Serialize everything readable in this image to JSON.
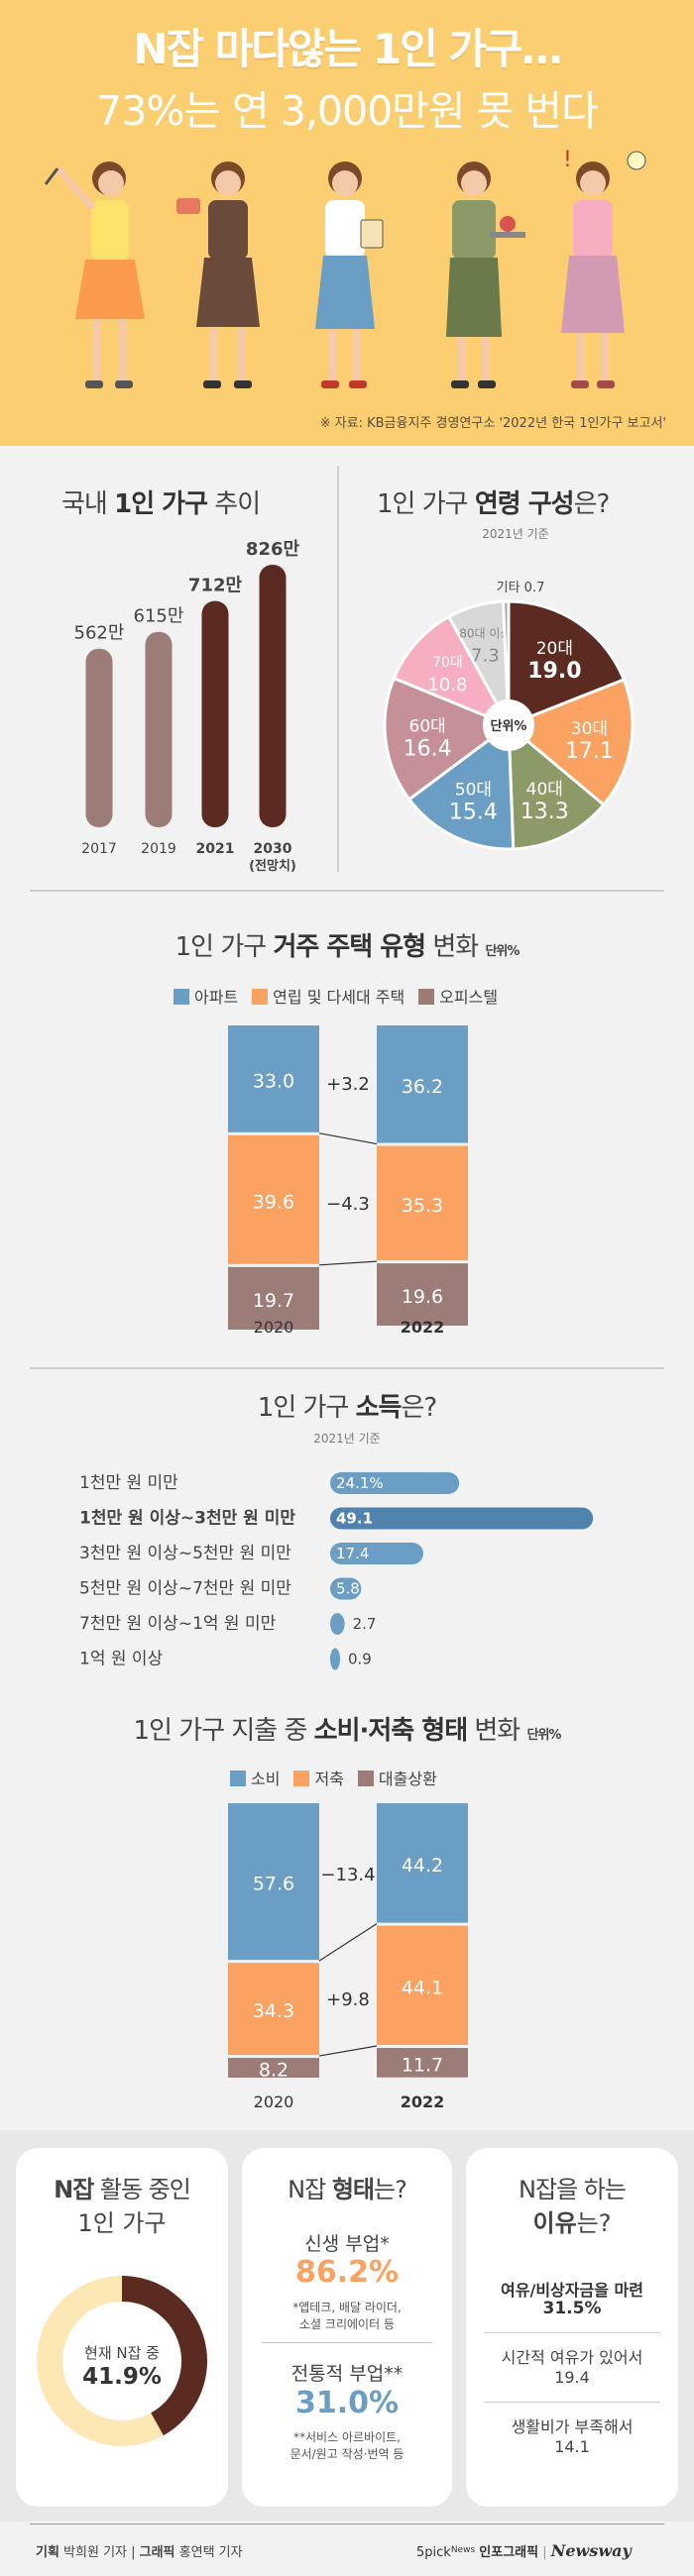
{
  "header": {
    "title": "N잡 마다않는 1인 가구…",
    "subtitle": "73%는 연 3,000만원 못 번다",
    "source": "※ 자료: KB금융지주 경영연구소 '2022년 한국 1인가구 보고서'"
  },
  "colors": {
    "brown": "#5b2b22",
    "mauve": "#9c7c76",
    "blue": "#6b9ec4",
    "orange": "#f9a261",
    "rose": "#c69099",
    "sage": "#8b9a66",
    "pink": "#f6aec0",
    "lightgray": "#d8d8d8",
    "gray": "#a9a9a9",
    "cream": "#fde7b4"
  },
  "households": {
    "title_pre": "국내 ",
    "title_bold": "1인 가구",
    "title_post": " 추이"
  },
  "age": {
    "title_pre": "1인 가구 ",
    "title_bold": "연령 구성",
    "title_post": "은?",
    "subtitle": "2021년 기준",
    "center_label": "단위%"
  },
  "housing": {
    "title_pre": "1인 가구 ",
    "title_bold": "거주 주택 유형",
    "title_post": " 변화",
    "unit": "단위%",
    "legend": [
      "아파트",
      "연립 및 다세대 주택",
      "오피스텔"
    ],
    "changes": [
      "+3.2",
      "−4.3"
    ]
  },
  "income": {
    "title_pre": "1인 가구 ",
    "title_bold": "소득",
    "title_post": "은?",
    "subtitle": "2021년 기준"
  },
  "spending": {
    "title_pre": "1인 가구 지출 중 ",
    "title_bold": "소비·저축 형태",
    "title_post": " 변화",
    "unit": "단위%",
    "legend": [
      "소비",
      "저축",
      "대출상환"
    ],
    "changes": [
      "−13.4",
      "+9.8"
    ]
  },
  "cards": {
    "c1": {
      "title_bold": "N잡",
      "title_post": " 활동 중인",
      "title_line2": "1인 가구",
      "center_line1": "현재 N잡 중",
      "center_value": "41.9%"
    },
    "c2": {
      "title_pre": "N잡 ",
      "title_bold": "형태",
      "title_post": "는?",
      "item1_label": "신생 부업*",
      "item1_value": "86.2%",
      "item1_note1": "*앱테크, 배달 라이더,",
      "item1_note2": "소셜 크리에이터 등",
      "item2_label": "전통적 부업**",
      "item2_value": "31.0%",
      "item2_note1": "**서비스 아르바이트,",
      "item2_note2": "문서/원고 작성·번역 등"
    },
    "c3": {
      "title_line1": "N잡을 하는",
      "title_bold": "이유",
      "title_post": "는?",
      "r1_label": "여유/비상자금을 마련",
      "r1_value": "31.5%",
      "r2_label": "시간적 여유가 있어서",
      "r2_value": "19.4",
      "r3_label": "생활비가 부족해서",
      "r3_value": "14.1"
    }
  },
  "footer": {
    "credit_b1": "기획",
    "credit_1": " 박희원 기자 | ",
    "credit_b2": "그래픽",
    "credit_2": " 홍연택 기자",
    "brand_small": "5pick",
    "brand_news": "News",
    "brand_ig": "인포그래픽",
    "brand_nw": "Newsway"
  },
  "chart_data": [
    {
      "type": "bar",
      "title": "국내 1인 가구 추이",
      "categories": [
        "2017",
        "2019",
        "2021",
        "2030\n(전망치)"
      ],
      "values": [
        562,
        615,
        712,
        826
      ],
      "value_labels": [
        "562만",
        "615만",
        "712만",
        "826만"
      ]
    },
    {
      "type": "pie",
      "title": "1인 가구 연령 구성은?",
      "subtitle": "2021년 기준",
      "categories": [
        "20대",
        "30대",
        "40대",
        "50대",
        "60대",
        "70대",
        "80대 이상",
        "기타"
      ],
      "values": [
        19.0,
        17.1,
        13.3,
        15.4,
        16.4,
        10.8,
        7.3,
        0.7
      ]
    },
    {
      "type": "bar",
      "title": "1인 가구 거주 주택 유형 변화",
      "categories": [
        "2020",
        "2022"
      ],
      "series": [
        {
          "name": "아파트",
          "values": [
            33.0,
            36.2
          ]
        },
        {
          "name": "연립 및 다세대 주택",
          "values": [
            39.6,
            35.3
          ]
        },
        {
          "name": "오피스텔",
          "values": [
            19.7,
            19.6
          ]
        }
      ]
    },
    {
      "type": "bar",
      "title": "1인 가구 소득은?",
      "subtitle": "2021년 기준",
      "categories": [
        "1천만 원 미만",
        "1천만 원 이상~3천만 원 미만",
        "3천만 원 이상~5천만 원 미만",
        "5천만 원 이상~7천만 원 미만",
        "7천만 원 이상~1억 원 미만",
        "1억 원 이상"
      ],
      "values": [
        24.1,
        49.1,
        17.4,
        5.8,
        2.7,
        0.9
      ],
      "value_labels": [
        "24.1%",
        "49.1",
        "17.4",
        "5.8",
        "2.7",
        "0.9"
      ]
    },
    {
      "type": "bar",
      "title": "1인 가구 지출 중 소비·저축 형태 변화",
      "categories": [
        "2020",
        "2022"
      ],
      "series": [
        {
          "name": "소비",
          "values": [
            57.6,
            44.2
          ]
        },
        {
          "name": "저축",
          "values": [
            34.3,
            44.1
          ]
        },
        {
          "name": "대출상환",
          "values": [
            8.2,
            11.7
          ]
        }
      ]
    },
    {
      "type": "pie",
      "title": "N잡 활동 중인 1인 가구",
      "values": [
        41.9
      ]
    }
  ]
}
